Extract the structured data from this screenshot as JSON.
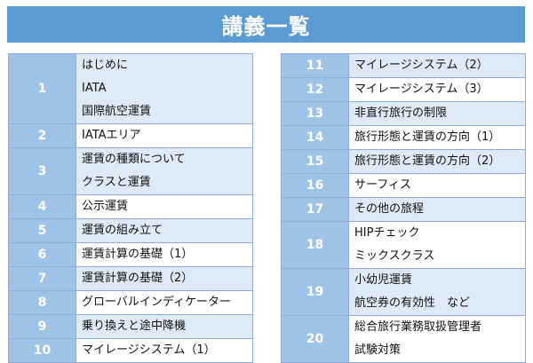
{
  "header": {
    "title": "講義一覧"
  },
  "lectures_left": [
    {
      "number": "1",
      "lines": [
        "はじめに",
        "IATA",
        "国際航空運賃"
      ]
    },
    {
      "number": "2",
      "lines": [
        "IATAエリア"
      ]
    },
    {
      "number": "3",
      "lines": [
        "運賃の種類について",
        "クラスと運賃"
      ]
    },
    {
      "number": "4",
      "lines": [
        "公示運賃"
      ]
    },
    {
      "number": "5",
      "lines": [
        "運賃の組み立て"
      ]
    },
    {
      "number": "6",
      "lines": [
        "運賃計算の基礎（1）"
      ]
    },
    {
      "number": "7",
      "lines": [
        "運賃計算の基礎（2）"
      ]
    },
    {
      "number": "8",
      "lines": [
        "グローバルインディケーター"
      ]
    },
    {
      "number": "9",
      "lines": [
        "乗り換えと途中降機"
      ]
    },
    {
      "number": "10",
      "lines": [
        "マイレージシステム（1）"
      ]
    }
  ],
  "lectures_right": [
    {
      "number": "11",
      "lines": [
        "マイレージシステム（2）"
      ]
    },
    {
      "number": "12",
      "lines": [
        "マイレージシステム（3）"
      ]
    },
    {
      "number": "13",
      "lines": [
        "非直行旅行の制限"
      ]
    },
    {
      "number": "14",
      "lines": [
        "旅行形態と運賃の方向（1）"
      ]
    },
    {
      "number": "15",
      "lines": [
        "旅行形態と運賃の方向（2）"
      ]
    },
    {
      "number": "16",
      "lines": [
        "サーフィス"
      ]
    },
    {
      "number": "17",
      "lines": [
        "その他の旅程"
      ]
    },
    {
      "number": "18",
      "lines": [
        "HIPチェック",
        "ミックスクラス"
      ]
    },
    {
      "number": "19",
      "lines": [
        "小幼児運賃",
        "航空券の有効性　など"
      ]
    },
    {
      "number": "20",
      "lines": [
        "総合旅行業務取扱管理者",
        "試験対策"
      ]
    }
  ]
}
